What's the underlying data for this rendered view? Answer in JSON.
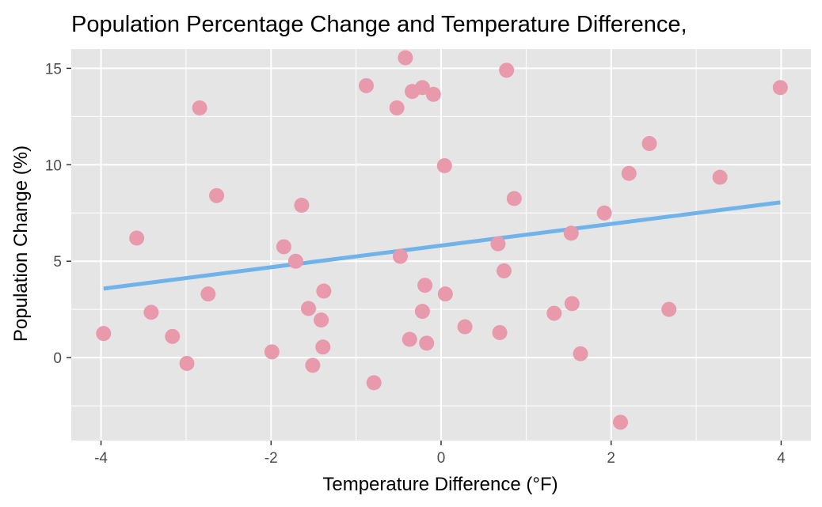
{
  "chart_data": {
    "type": "scatter",
    "title": "Population Percentage Change and Temperature Difference,",
    "xlabel": "Temperature Difference (°F)",
    "ylabel": "Population Change (%)",
    "xlim": [
      -4.35,
      4.35
    ],
    "ylim": [
      -4.3,
      16.0
    ],
    "x_ticks": [
      -4,
      -2,
      0,
      2,
      4
    ],
    "x_tick_labels": [
      "-4",
      "-2",
      "0",
      "2",
      "4"
    ],
    "y_ticks": [
      0,
      5,
      10,
      15
    ],
    "y_tick_labels": [
      "0",
      "5",
      "10",
      "15"
    ],
    "grid": true,
    "legend": "none",
    "point_color": "#e899ab",
    "line_color": "#6fb3ea",
    "panel_background": "#e5e5e5",
    "grid_color": "#ffffff",
    "points": [
      {
        "x": -3.97,
        "y": 1.25
      },
      {
        "x": -3.58,
        "y": 6.2
      },
      {
        "x": -3.41,
        "y": 2.35
      },
      {
        "x": -3.16,
        "y": 1.1
      },
      {
        "x": -2.99,
        "y": -0.3
      },
      {
        "x": -2.84,
        "y": 12.95
      },
      {
        "x": -2.74,
        "y": 3.3
      },
      {
        "x": -2.64,
        "y": 8.4
      },
      {
        "x": -1.99,
        "y": 0.3
      },
      {
        "x": -1.85,
        "y": 5.75
      },
      {
        "x": -1.71,
        "y": 5.0
      },
      {
        "x": -1.64,
        "y": 7.9
      },
      {
        "x": -1.56,
        "y": 2.55
      },
      {
        "x": -1.51,
        "y": -0.4
      },
      {
        "x": -1.41,
        "y": 1.95
      },
      {
        "x": -1.39,
        "y": 0.55
      },
      {
        "x": -1.38,
        "y": 3.45
      },
      {
        "x": -0.88,
        "y": 14.1
      },
      {
        "x": -0.79,
        "y": -1.3
      },
      {
        "x": -0.52,
        "y": 12.95
      },
      {
        "x": -0.48,
        "y": 5.25
      },
      {
        "x": -0.42,
        "y": 15.55
      },
      {
        "x": -0.37,
        "y": 0.95
      },
      {
        "x": -0.34,
        "y": 13.8
      },
      {
        "x": -0.22,
        "y": 14.0
      },
      {
        "x": -0.22,
        "y": 2.4
      },
      {
        "x": -0.19,
        "y": 3.75
      },
      {
        "x": -0.17,
        "y": 0.75
      },
      {
        "x": -0.09,
        "y": 13.65
      },
      {
        "x": 0.04,
        "y": 9.95
      },
      {
        "x": 0.05,
        "y": 3.3
      },
      {
        "x": 0.28,
        "y": 1.6
      },
      {
        "x": 0.67,
        "y": 5.9
      },
      {
        "x": 0.69,
        "y": 1.3
      },
      {
        "x": 0.74,
        "y": 4.5
      },
      {
        "x": 0.77,
        "y": 14.9
      },
      {
        "x": 0.86,
        "y": 8.25
      },
      {
        "x": 1.33,
        "y": 2.3
      },
      {
        "x": 1.53,
        "y": 6.45
      },
      {
        "x": 1.54,
        "y": 2.8
      },
      {
        "x": 1.64,
        "y": 0.2
      },
      {
        "x": 1.92,
        "y": 7.5
      },
      {
        "x": 2.11,
        "y": -3.35
      },
      {
        "x": 2.21,
        "y": 9.55
      },
      {
        "x": 2.45,
        "y": 11.1
      },
      {
        "x": 2.68,
        "y": 2.5
      },
      {
        "x": 3.28,
        "y": 9.35
      },
      {
        "x": 3.99,
        "y": 14.0
      }
    ],
    "trend_line": {
      "x": [
        -3.97,
        3.99
      ],
      "y": [
        3.58,
        8.05
      ]
    }
  }
}
